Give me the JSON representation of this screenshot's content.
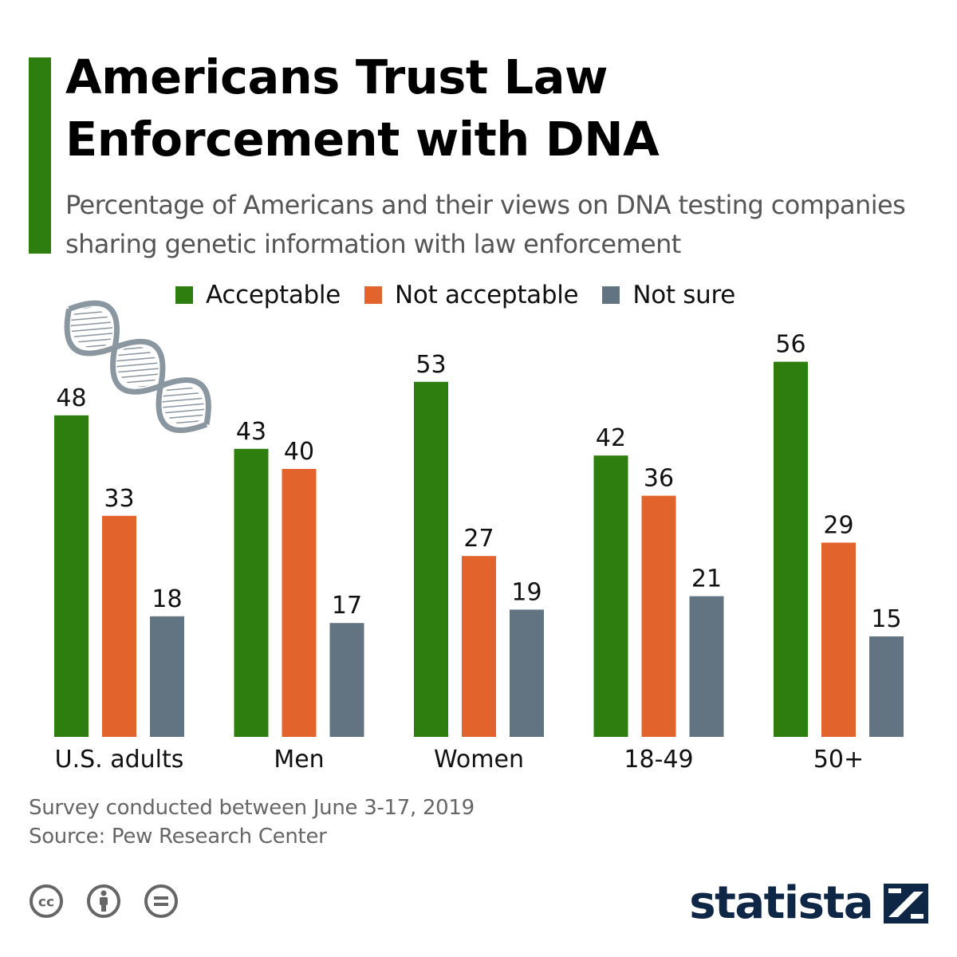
{
  "header": {
    "title": "Americans Trust Law Enforcement with DNA",
    "subtitle": "Percentage of Americans and their views on DNA testing companies sharing genetic information with law enforcement"
  },
  "legend": [
    {
      "label": "Acceptable",
      "color": "#2e7d0f"
    },
    {
      "label": "Not acceptable",
      "color": "#e2642c"
    },
    {
      "label": "Not sure",
      "color": "#627482"
    }
  ],
  "chart_data": {
    "type": "bar",
    "title": "Americans Trust Law Enforcement with DNA",
    "subtitle": "Percentage of Americans and their views on DNA testing companies sharing genetic information with law enforcement",
    "categories": [
      "U.S. adults",
      "Men",
      "Women",
      "18-49",
      "50+"
    ],
    "series": [
      {
        "name": "Acceptable",
        "color": "#2e7d0f",
        "values": [
          48,
          43,
          53,
          42,
          56
        ]
      },
      {
        "name": "Not acceptable",
        "color": "#e2642c",
        "values": [
          33,
          40,
          27,
          36,
          29
        ]
      },
      {
        "name": "Not sure",
        "color": "#627482",
        "values": [
          18,
          17,
          19,
          21,
          15
        ]
      }
    ],
    "ylim": [
      0,
      60
    ],
    "grid": false,
    "legend_position": "top",
    "data_labels": true
  },
  "footer": {
    "note": "Survey conducted between June 3-17, 2019",
    "source": "Source: Pew Research Center"
  },
  "license_icons": [
    "creative-commons-icon",
    "attribution-icon",
    "no-derivatives-icon"
  ],
  "brand": {
    "name": "statista",
    "color": "#0f2747"
  },
  "decoration": {
    "icon": "dna-helix-icon"
  }
}
